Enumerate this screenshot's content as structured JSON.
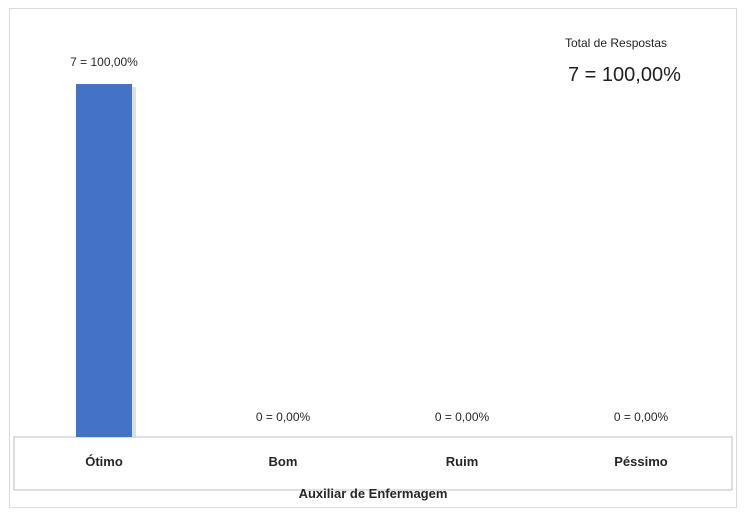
{
  "summary": {
    "label": "Total de Respostas",
    "value": "7 = 100,00%"
  },
  "chart_data": {
    "type": "bar",
    "title": "",
    "xlabel": "Auxiliar de Enfermagem",
    "ylabel": "",
    "categories": [
      "Ótimo",
      "Bom",
      "Ruim",
      "Péssimo"
    ],
    "values": [
      7,
      0,
      0,
      0
    ],
    "data_labels": [
      "7 = 100,00%",
      "0 = 0,00%",
      "0 = 0,00%",
      "0 = 0,00%"
    ],
    "ylim": [
      0,
      7
    ],
    "grid": false,
    "colors": {
      "bar": "#4472C4",
      "axis": "#bfbfbf"
    }
  }
}
